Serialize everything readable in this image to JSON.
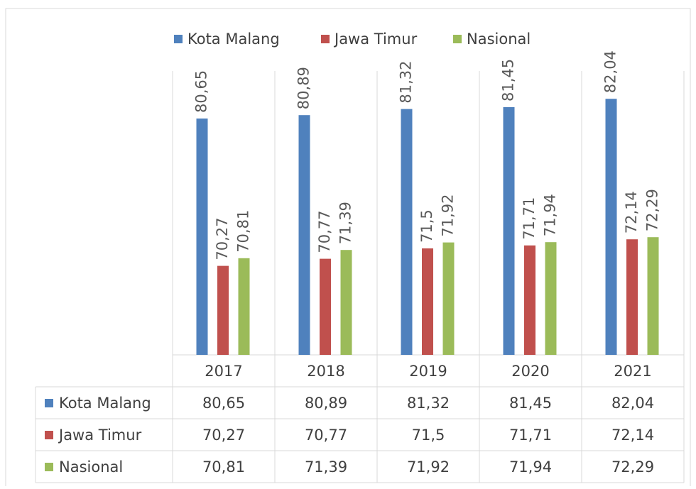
{
  "chart_data": {
    "type": "bar",
    "categories": [
      "2017",
      "2018",
      "2019",
      "2020",
      "2021"
    ],
    "series": [
      {
        "name": "Kota Malang",
        "color": "#4f81bd",
        "values": [
          80.65,
          80.89,
          81.32,
          81.45,
          82.04
        ],
        "value_labels": [
          "80,65",
          "80,89",
          "81,32",
          "81,45",
          "82,04"
        ]
      },
      {
        "name": "Jawa Timur",
        "color": "#c0504d",
        "values": [
          70.27,
          70.77,
          71.5,
          71.71,
          72.14
        ],
        "value_labels": [
          "70,27",
          "70,77",
          "71,5",
          "71,71",
          "72,14"
        ]
      },
      {
        "name": "Nasional",
        "color": "#9bbb59",
        "values": [
          70.81,
          71.39,
          71.92,
          71.94,
          72.29
        ],
        "value_labels": [
          "70,81",
          "71,39",
          "71,92",
          "71,94",
          "72,29"
        ]
      }
    ],
    "ylim": [
      64,
      84
    ],
    "legend": "top",
    "data_table": true
  }
}
